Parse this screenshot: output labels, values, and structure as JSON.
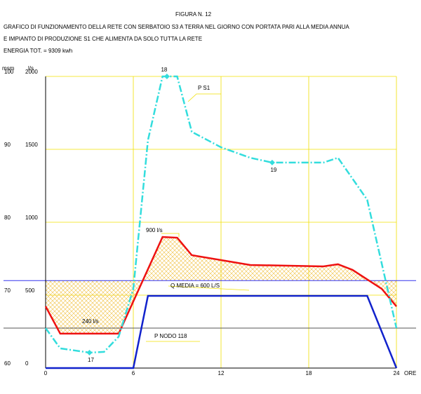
{
  "chart_data": {
    "type": "line",
    "title": "FIGURA N. 12",
    "subtitle": [
      "GRAFICO DI FUNZIONAMENTO DELLA RETE CON SERBATOIO S3 A TERRA NEL GIORNO CON PORTATA PARI ALLA MEDIA ANNUA",
      "E IMPIANTO DI PRODUZIONE S1 CHE ALIMENTA DA SOLO TUTTA LA RETE",
      "ENERGIA TOT. = 9309 kwh"
    ],
    "x_label": "ORE",
    "y_label": "l/s",
    "y2_label": "msm",
    "xlim": [
      0,
      24
    ],
    "xticks": [
      0,
      6,
      12,
      18,
      24
    ],
    "ylim": [
      0,
      2000
    ],
    "yticks": [
      0,
      500,
      1000,
      1500,
      2000
    ],
    "y2lim": [
      60,
      100
    ],
    "y2ticks": [
      60,
      70,
      80,
      90,
      100
    ],
    "grid": true,
    "grid_color": "#f0e000",
    "series": [
      {
        "color": "#ee1111",
        "style": "solid",
        "hatch_to": 600,
        "x": [
          0,
          1,
          5,
          8,
          9,
          10,
          14,
          19,
          20,
          21,
          23,
          24
        ],
        "values": [
          423,
          236,
          236,
          899,
          894,
          774,
          707,
          697,
          712,
          673,
          543,
          423
        ]
      },
      {
        "name": "P S1",
        "color": "#33dddd",
        "style": "dashdot",
        "x": [
          0,
          1,
          3,
          4,
          5,
          6,
          7,
          8,
          9,
          10,
          12,
          14,
          15.5,
          19,
          20,
          22,
          24
        ],
        "values": [
          274,
          135,
          106,
          111,
          216,
          543,
          1562,
          2000,
          2000,
          1620,
          1514,
          1442,
          1409,
          1409,
          1442,
          1154,
          274
        ]
      },
      {
        "name": "P NODO 118",
        "color": "#1122cc",
        "style": "solid",
        "x": [
          0,
          6,
          7,
          22,
          24
        ],
        "values": [
          0,
          0,
          495,
          495,
          0
        ]
      }
    ],
    "reference_lines": [
      {
        "value": 600,
        "color": "#3333ee",
        "label": "Q MEDIA = 600 L/S"
      },
      {
        "value": 274,
        "color": "#555555"
      }
    ],
    "points": [
      {
        "label": "18",
        "x": 8.3,
        "y": 2000
      },
      {
        "label": "19",
        "x": 15.5,
        "y": 1409
      },
      {
        "label": "17",
        "x": 3,
        "y": 106
      }
    ],
    "annotations": [
      "900 l/s",
      "240 l/s"
    ]
  }
}
